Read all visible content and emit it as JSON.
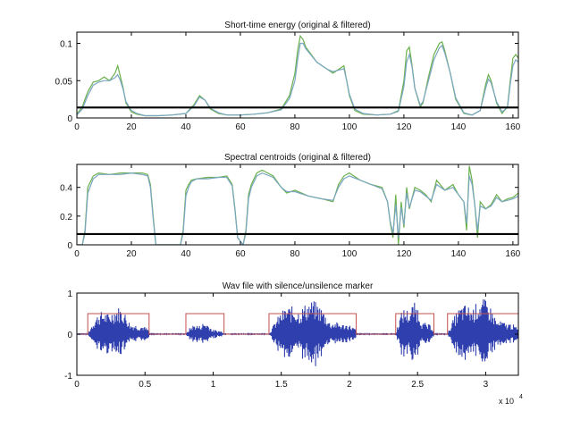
{
  "chart_data": [
    {
      "type": "line",
      "title": "Short-time energy (original & filtered)",
      "xlim": [
        0,
        162
      ],
      "ylim": [
        0,
        0.115
      ],
      "xticks": [
        0,
        20,
        40,
        60,
        80,
        100,
        120,
        140,
        160
      ],
      "xtick_labels": [
        "0",
        "20",
        "40",
        "60",
        "80",
        "100",
        "120",
        "140",
        "160"
      ],
      "yticks": [
        0,
        0.05,
        0.1
      ],
      "ytick_labels": [
        "0",
        "0.05",
        "0.1"
      ],
      "threshold": 0.014,
      "threshold_color": "#000000",
      "series": [
        {
          "color": "#6ab04c",
          "x": [
            0,
            2,
            4,
            6,
            8,
            10,
            12,
            14,
            15,
            16,
            17,
            18,
            20,
            22,
            25,
            30,
            35,
            40,
            43,
            45,
            47,
            49,
            52,
            55,
            60,
            65,
            70,
            75,
            78,
            80,
            81,
            82,
            83,
            84,
            86,
            88,
            90,
            92,
            94,
            96,
            98,
            99,
            100,
            102,
            105,
            110,
            115,
            118,
            120,
            121,
            122,
            123,
            124,
            126,
            127,
            129,
            131,
            133,
            134,
            135,
            137,
            139,
            142,
            145,
            148,
            150,
            151,
            152,
            154,
            156,
            158,
            159,
            160,
            161,
            162
          ],
          "y": [
            0.005,
            0.015,
            0.035,
            0.048,
            0.05,
            0.055,
            0.05,
            0.06,
            0.07,
            0.055,
            0.04,
            0.02,
            0.008,
            0.005,
            0.003,
            0.003,
            0.004,
            0.006,
            0.018,
            0.03,
            0.024,
            0.012,
            0.006,
            0.004,
            0.004,
            0.005,
            0.007,
            0.012,
            0.03,
            0.06,
            0.09,
            0.11,
            0.105,
            0.095,
            0.085,
            0.075,
            0.07,
            0.065,
            0.06,
            0.065,
            0.07,
            0.05,
            0.03,
            0.01,
            0.005,
            0.004,
            0.005,
            0.01,
            0.05,
            0.09,
            0.095,
            0.07,
            0.04,
            0.015,
            0.02,
            0.055,
            0.085,
            0.1,
            0.102,
            0.09,
            0.06,
            0.025,
            0.006,
            0.004,
            0.01,
            0.045,
            0.058,
            0.05,
            0.02,
            0.006,
            0.015,
            0.05,
            0.08,
            0.085,
            0.08
          ]
        },
        {
          "color": "#7aa6c2",
          "x": [
            0,
            2,
            4,
            6,
            8,
            10,
            12,
            14,
            15,
            16,
            17,
            18,
            20,
            22,
            25,
            30,
            35,
            40,
            43,
            45,
            47,
            49,
            52,
            55,
            60,
            65,
            70,
            75,
            78,
            80,
            81,
            82,
            83,
            84,
            86,
            88,
            90,
            92,
            94,
            96,
            98,
            99,
            100,
            102,
            105,
            110,
            115,
            118,
            120,
            121,
            122,
            123,
            124,
            126,
            127,
            129,
            131,
            133,
            134,
            135,
            137,
            139,
            142,
            145,
            148,
            150,
            151,
            152,
            154,
            156,
            158,
            159,
            160,
            161,
            162
          ],
          "y": [
            0.004,
            0.012,
            0.03,
            0.044,
            0.048,
            0.05,
            0.05,
            0.054,
            0.058,
            0.05,
            0.038,
            0.022,
            0.01,
            0.006,
            0.003,
            0.003,
            0.004,
            0.006,
            0.016,
            0.028,
            0.024,
            0.013,
            0.007,
            0.004,
            0.004,
            0.005,
            0.007,
            0.011,
            0.026,
            0.05,
            0.078,
            0.1,
            0.1,
            0.093,
            0.084,
            0.075,
            0.07,
            0.065,
            0.062,
            0.064,
            0.066,
            0.05,
            0.032,
            0.012,
            0.006,
            0.004,
            0.005,
            0.009,
            0.042,
            0.075,
            0.085,
            0.068,
            0.04,
            0.017,
            0.022,
            0.05,
            0.078,
            0.094,
            0.097,
            0.087,
            0.06,
            0.027,
            0.007,
            0.004,
            0.01,
            0.04,
            0.052,
            0.047,
            0.022,
            0.008,
            0.014,
            0.045,
            0.07,
            0.078,
            0.075
          ]
        }
      ]
    },
    {
      "type": "line",
      "title": "Spectral centroids (original & filtered)",
      "xlim": [
        0,
        162
      ],
      "ylim": [
        0,
        0.56
      ],
      "xticks": [
        0,
        20,
        40,
        60,
        80,
        100,
        120,
        140,
        160
      ],
      "xtick_labels": [
        "0",
        "20",
        "40",
        "60",
        "80",
        "100",
        "120",
        "140",
        "160"
      ],
      "yticks": [
        0,
        0.2,
        0.4
      ],
      "ytick_labels": [
        "0",
        "0.2",
        "0.4"
      ],
      "threshold": 0.075,
      "threshold_color": "#000000",
      "series": [
        {
          "color": "#6ab04c",
          "x": [
            0,
            2,
            3,
            4,
            6,
            8,
            12,
            16,
            20,
            24,
            26,
            27,
            28,
            29,
            38,
            39,
            40,
            41,
            42,
            44,
            48,
            52,
            55,
            57,
            58,
            59,
            61,
            62,
            63,
            64,
            66,
            68,
            72,
            75,
            77,
            80,
            85,
            90,
            94,
            96,
            98,
            100,
            104,
            108,
            112,
            114,
            115,
            116,
            117,
            118,
            119,
            120,
            121,
            122,
            124,
            126,
            128,
            130,
            132,
            135,
            138,
            140,
            142,
            143,
            144,
            145,
            146,
            147,
            148,
            150,
            152,
            154,
            156,
            158,
            160,
            162
          ],
          "y": [
            0,
            0,
            0.1,
            0.4,
            0.48,
            0.5,
            0.49,
            0.5,
            0.5,
            0.5,
            0.49,
            0.42,
            0.2,
            0,
            0,
            0.1,
            0.38,
            0.42,
            0.45,
            0.46,
            0.47,
            0.47,
            0.48,
            0.42,
            0.25,
            0.05,
            0,
            0.1,
            0.35,
            0.42,
            0.5,
            0.52,
            0.48,
            0.4,
            0.36,
            0.38,
            0.34,
            0.32,
            0.3,
            0.42,
            0.48,
            0.5,
            0.45,
            0.42,
            0.4,
            0.3,
            0.15,
            0.05,
            0.35,
            0,
            0.3,
            0.12,
            0.4,
            0.25,
            0.4,
            0.38,
            0.35,
            0.3,
            0.45,
            0.38,
            0.42,
            0.35,
            0.3,
            0.1,
            0.55,
            0.45,
            0.28,
            0.05,
            0.3,
            0.25,
            0.28,
            0.35,
            0.3,
            0.32,
            0.33,
            0.36
          ]
        },
        {
          "color": "#7aa6c2",
          "x": [
            0,
            2,
            3,
            4,
            6,
            8,
            12,
            16,
            20,
            24,
            26,
            27,
            28,
            29,
            38,
            39,
            40,
            41,
            42,
            44,
            48,
            52,
            55,
            57,
            58,
            59,
            61,
            62,
            63,
            64,
            66,
            68,
            72,
            75,
            77,
            80,
            85,
            90,
            94,
            96,
            98,
            100,
            104,
            108,
            112,
            114,
            115,
            116,
            117,
            118,
            119,
            120,
            121,
            122,
            124,
            126,
            128,
            130,
            132,
            135,
            138,
            140,
            142,
            143,
            144,
            145,
            146,
            147,
            148,
            150,
            152,
            154,
            156,
            158,
            160,
            162
          ],
          "y": [
            0,
            0,
            0.08,
            0.36,
            0.46,
            0.49,
            0.49,
            0.49,
            0.5,
            0.49,
            0.48,
            0.4,
            0.18,
            0,
            0,
            0.08,
            0.34,
            0.4,
            0.44,
            0.46,
            0.46,
            0.47,
            0.47,
            0.41,
            0.24,
            0.05,
            0,
            0.08,
            0.32,
            0.4,
            0.48,
            0.5,
            0.47,
            0.4,
            0.37,
            0.37,
            0.34,
            0.32,
            0.31,
            0.4,
            0.46,
            0.48,
            0.45,
            0.42,
            0.39,
            0.3,
            0.16,
            0.08,
            0.28,
            0.05,
            0.26,
            0.14,
            0.36,
            0.26,
            0.38,
            0.37,
            0.34,
            0.31,
            0.42,
            0.38,
            0.4,
            0.35,
            0.3,
            0.15,
            0.48,
            0.42,
            0.28,
            0.1,
            0.27,
            0.25,
            0.27,
            0.33,
            0.3,
            0.31,
            0.32,
            0.34
          ]
        }
      ]
    },
    {
      "type": "line",
      "title": "Wav file with silence/unsilence marker",
      "xlim": [
        0,
        32400
      ],
      "ylim": [
        -1,
        1
      ],
      "xticks": [
        0,
        5000,
        10000,
        15000,
        20000,
        25000,
        30000
      ],
      "xtick_labels": [
        "0",
        "0.5",
        "1",
        "1.5",
        "2",
        "2.5",
        "3"
      ],
      "yticks": [
        -1,
        0,
        1
      ],
      "ytick_labels": [
        "-1",
        "0",
        "1"
      ],
      "x_exponent_label": "x 10",
      "x_exponent_power": "4",
      "waveform_color": "#2f3fae",
      "marker_color": "#c0504d",
      "marker_level": 0.5,
      "segments": [
        {
          "start": 800,
          "end": 5300,
          "amp": 0.7
        },
        {
          "start": 8000,
          "end": 10800,
          "amp": 0.3
        },
        {
          "start": 14100,
          "end": 20500,
          "amp": 0.85
        },
        {
          "start": 23400,
          "end": 26200,
          "amp": 0.8
        },
        {
          "start": 27200,
          "end": 32400,
          "amp": 0.9
        }
      ]
    }
  ]
}
